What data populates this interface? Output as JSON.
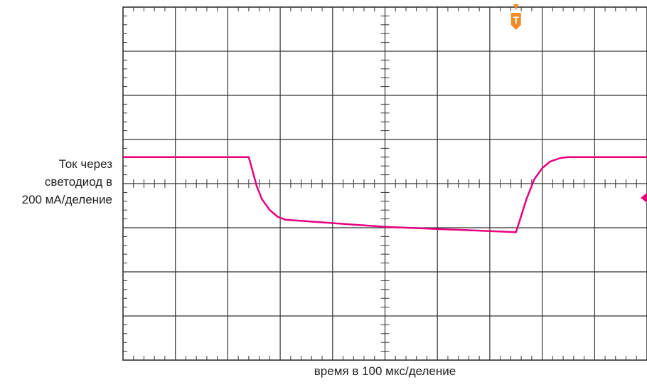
{
  "chart_data": {
    "type": "line",
    "ylabel_lines": [
      "Ток через",
      "светодиод в",
      "200 мА/деление"
    ],
    "xlabel": "время в 100 мкс/деление",
    "divisions": {
      "x": 10,
      "y": 8
    },
    "xlim": [
      0,
      10
    ],
    "ylim": [
      -4,
      4
    ],
    "minor_ticks_per_division": 5,
    "grid": true,
    "trigger_marker": {
      "label": "T",
      "x": 7.5,
      "color": "#f08a24"
    },
    "ground_marker": {
      "y": 0,
      "color": "#e6007e"
    },
    "series": [
      {
        "color": "#e6007e",
        "x": [
          0,
          2.4,
          2.47,
          2.55,
          2.65,
          2.8,
          2.95,
          3.1,
          5.0,
          7.5,
          7.7,
          7.85,
          8.0,
          8.15,
          8.35,
          8.5,
          10
        ],
        "y": [
          0.6,
          0.6,
          0.3,
          -0.05,
          -0.35,
          -0.6,
          -0.75,
          -0.82,
          -0.98,
          -1.1,
          -0.35,
          0.1,
          0.35,
          0.5,
          0.58,
          0.6,
          0.6
        ]
      }
    ]
  }
}
